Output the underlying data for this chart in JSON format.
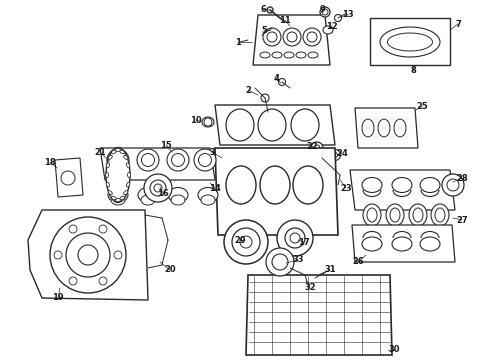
{
  "bg_color": "#ffffff",
  "line_color": "#2a2a2a",
  "label_color": "#1a1a1a",
  "figsize": [
    4.9,
    3.6
  ],
  "dpi": 100
}
